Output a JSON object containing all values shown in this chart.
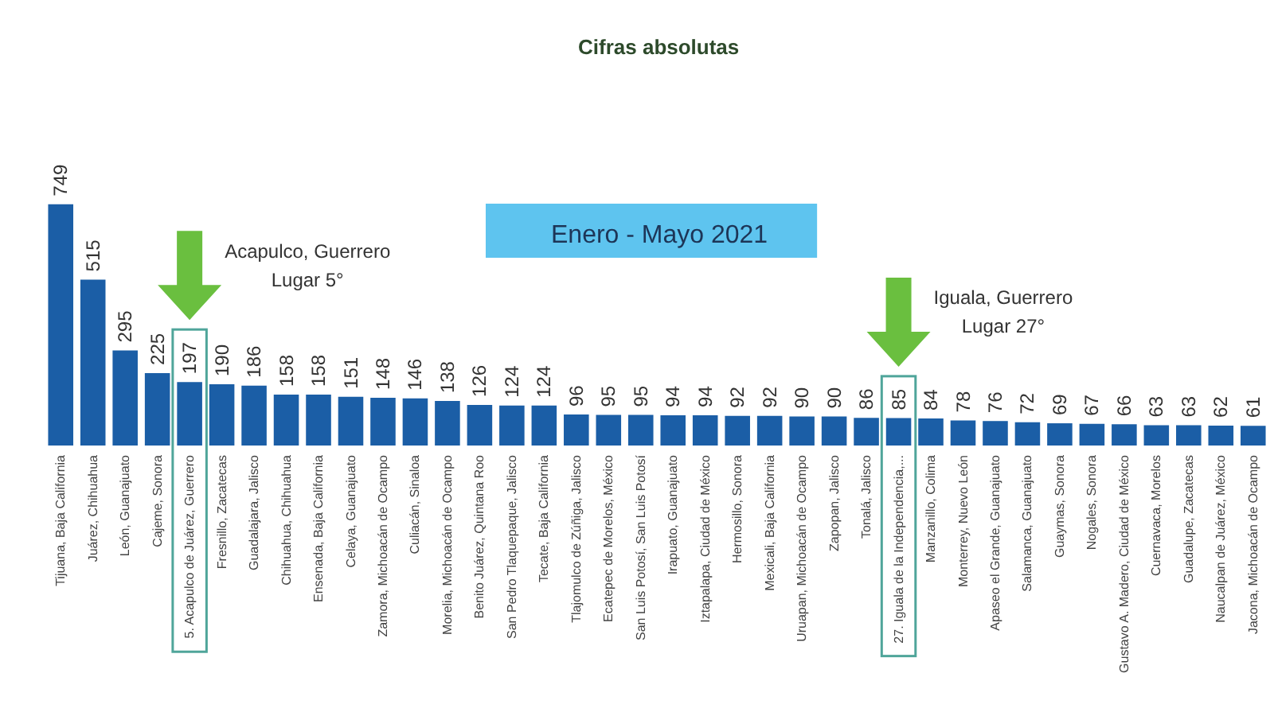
{
  "chart_data": {
    "type": "bar",
    "title": "Cifras absolutas",
    "subtitle": "Enero - Mayo 2021",
    "categories": [
      "Tijuana, Baja California",
      "Juárez, Chihuahua",
      "León, Guanajuato",
      "Cajeme, Sonora",
      "5. Acapulco de Juárez, Guerrero",
      "Fresnillo, Zacatecas",
      "Guadalajara, Jalisco",
      "Chihuahua, Chihuahua",
      "Ensenada, Baja California",
      "Celaya, Guanajuato",
      "Zamora, Michoacán de Ocampo",
      "Culiacán, Sinaloa",
      "Morelia, Michoacán de Ocampo",
      "Benito Juárez, Quintana Roo",
      "San Pedro Tlaquepaque, Jalisco",
      "Tecate, Baja California",
      "Tlajomulco de Zúñiga, Jalisco",
      "Ecatepec de Morelos, México",
      "San Luis Potosí, San Luis Potosí",
      "Irapuato, Guanajuato",
      "Iztapalapa, Ciudad de México",
      "Hermosillo, Sonora",
      "Mexicali, Baja California",
      "Uruapan, Michoacán de Ocampo",
      "Zapopan, Jalisco",
      "Tonalá, Jalisco",
      "27. Iguala de la Independencia,...",
      "Manzanillo, Colima",
      "Monterrey, Nuevo León",
      "Apaseo el Grande, Guanajuato",
      "Salamanca, Guanajuato",
      "Guaymas, Sonora",
      "Nogales, Sonora",
      "Gustavo A. Madero, Ciudad de México",
      "Cuernavaca, Morelos",
      "Guadalupe, Zacatecas",
      "Naucalpan de Juárez, México",
      "Jacona, Michoacán de Ocampo"
    ],
    "values": [
      749,
      515,
      295,
      225,
      197,
      190,
      186,
      158,
      158,
      151,
      148,
      146,
      138,
      126,
      124,
      124,
      96,
      95,
      95,
      94,
      94,
      92,
      92,
      90,
      90,
      86,
      85,
      84,
      78,
      76,
      72,
      69,
      67,
      66,
      63,
      63,
      62,
      61
    ],
    "color": "#1b5ea6",
    "data_labels": true,
    "tick_labels": "x",
    "annotations": [
      "Acapulco, Guerrero\nLugar 5°",
      "Iguala, Guerrero\nLugar 27°"
    ]
  }
}
